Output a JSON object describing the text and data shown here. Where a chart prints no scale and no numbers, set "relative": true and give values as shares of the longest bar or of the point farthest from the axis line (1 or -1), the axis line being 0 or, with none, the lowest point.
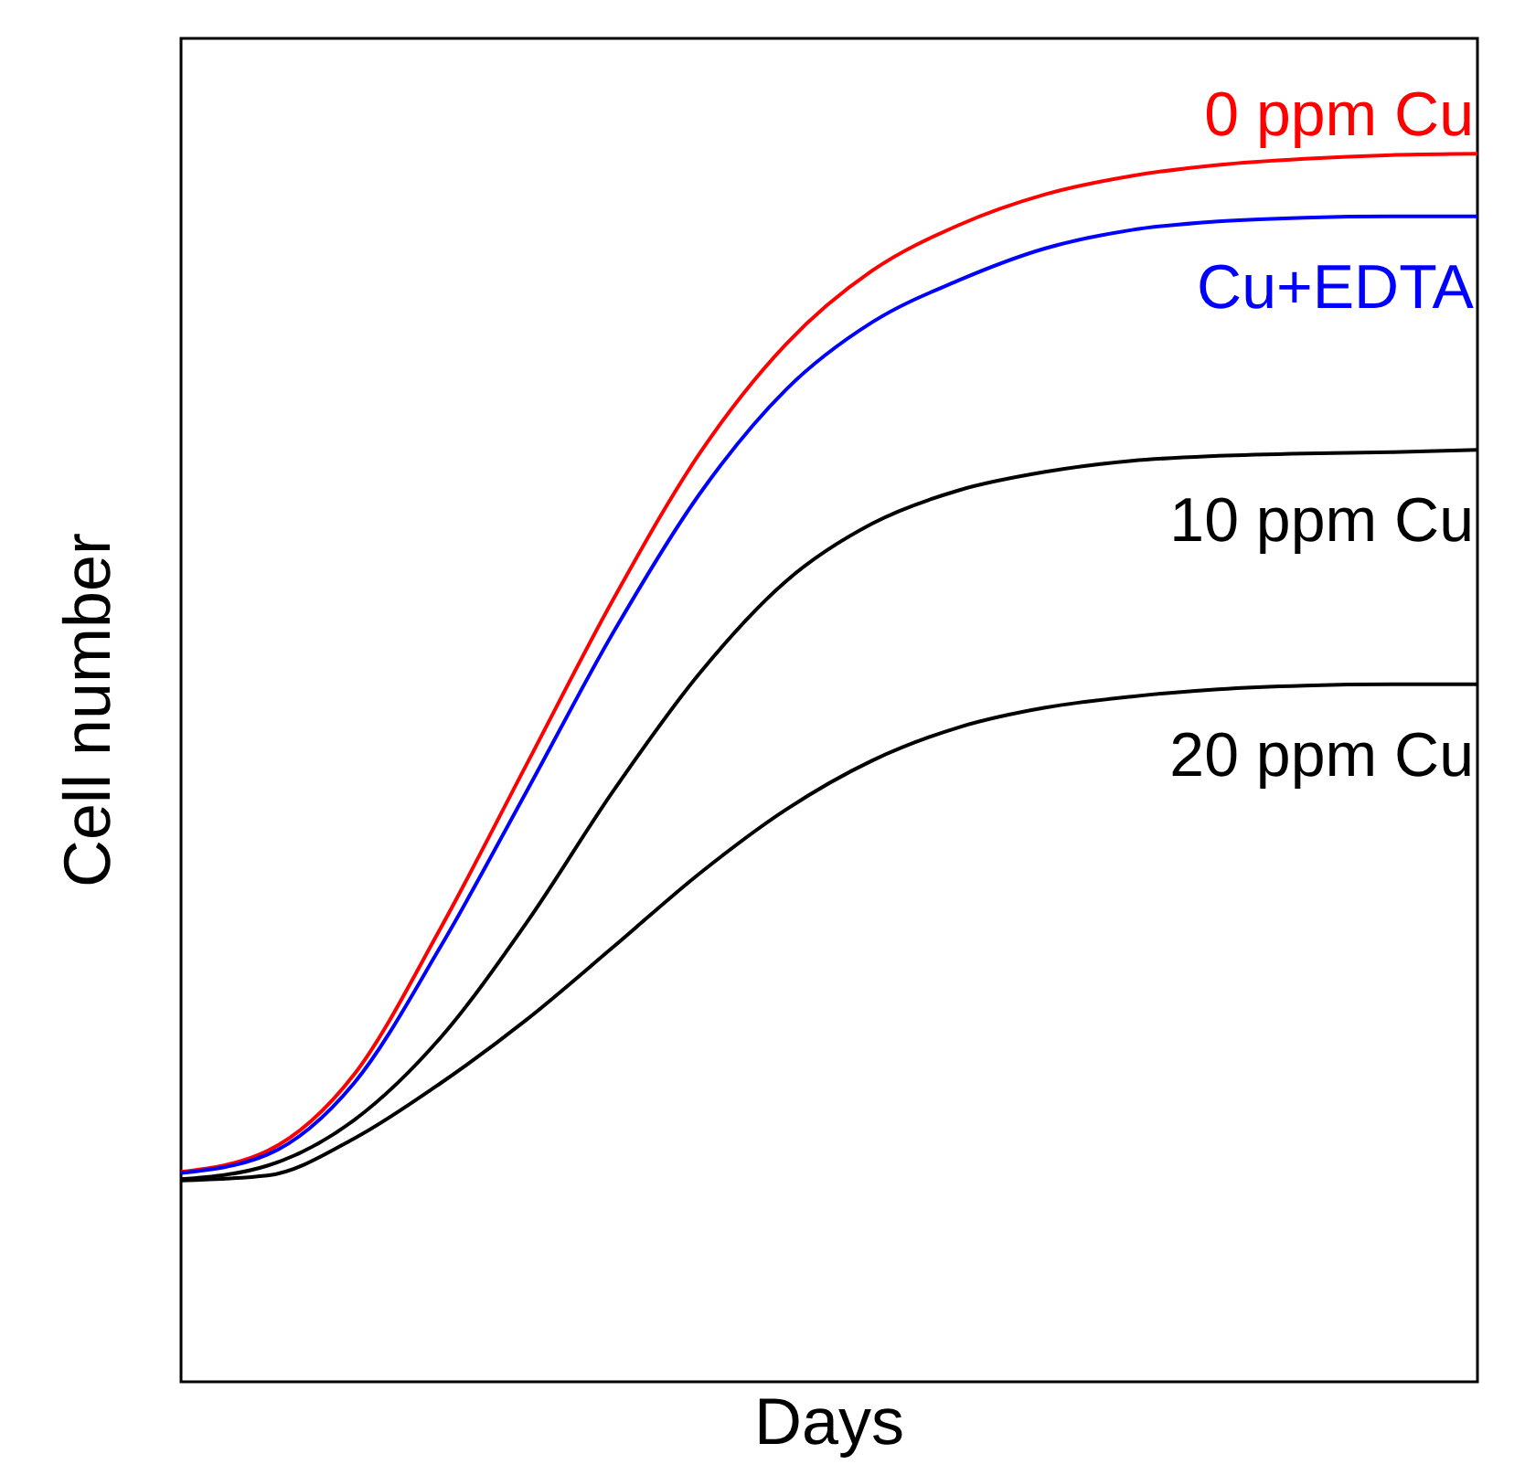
{
  "chart_data": {
    "type": "line",
    "relative": true,
    "xlabel": "Days",
    "ylabel": "Cell number",
    "categories": [
      null,
      null,
      null,
      null,
      null,
      null,
      null,
      null,
      null,
      null,
      null,
      null,
      null,
      null,
      null,
      null
    ],
    "series": [
      {
        "name": "0 ppm Cu",
        "color": "#ff0000",
        "values": [
          0.171,
          0.188,
          0.25,
          0.369,
          0.503,
          0.637,
          0.756,
          0.845,
          0.905,
          0.942,
          0.967,
          0.982,
          0.991,
          0.996,
          0.999,
          1
        ]
      },
      {
        "name": "Cu+EDTA",
        "color": "#0000ff",
        "values": [
          0.17,
          0.185,
          0.243,
          0.354,
          0.481,
          0.61,
          0.723,
          0.808,
          0.863,
          0.897,
          0.923,
          0.938,
          0.945,
          0.948,
          0.949,
          0.949
        ]
      },
      {
        "name": "10 ppm Cu",
        "color": "#000000",
        "values": [
          0.165,
          0.176,
          0.213,
          0.28,
          0.374,
          0.481,
          0.577,
          0.652,
          0.699,
          0.726,
          0.741,
          0.75,
          0.754,
          0.756,
          0.757,
          0.759
        ]
      },
      {
        "name": "20 ppm Cu",
        "color": "#000000",
        "values": [
          0.164,
          0.168,
          0.198,
          0.243,
          0.295,
          0.354,
          0.414,
          0.466,
          0.506,
          0.533,
          0.549,
          0.558,
          0.564,
          0.567,
          0.568,
          0.568
        ]
      }
    ],
    "marker": "none",
    "line_style": "solid"
  }
}
